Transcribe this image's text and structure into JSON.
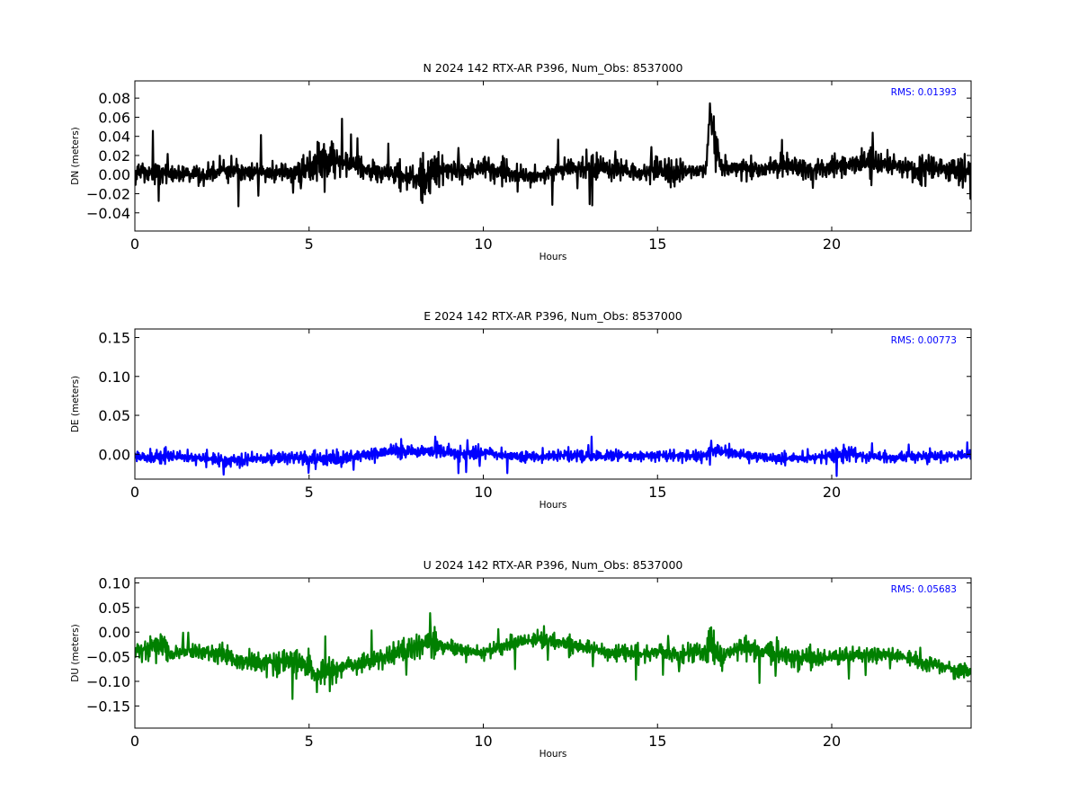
{
  "chart_data": [
    {
      "type": "line",
      "title": "N 2024 142 RTX-AR  P396, Num_Obs: 8537000",
      "xlabel": "Hours",
      "ylabel": "DN (meters)",
      "xlim": [
        0,
        24
      ],
      "ylim": [
        -0.059,
        0.098
      ],
      "xticks": [
        0,
        5,
        10,
        15,
        20
      ],
      "yticks": [
        -0.04,
        -0.02,
        0.0,
        0.02,
        0.04,
        0.06,
        0.08
      ],
      "ytick_labels": [
        "−0.04",
        "−0.02",
        "0.00",
        "0.02",
        "0.04",
        "0.06",
        "0.08"
      ],
      "grid": false,
      "annotation": "RMS:  0.01393",
      "annotation_color": "#0000ff",
      "series": [
        {
          "color": "#000000",
          "x": [
            0,
            0.5,
            1,
            1.5,
            2,
            2.5,
            3,
            3.5,
            4,
            4.5,
            5,
            5.25,
            5.5,
            6,
            6.5,
            7,
            7.5,
            8,
            8.4,
            8.7,
            9,
            9.5,
            10,
            10.5,
            11,
            11.5,
            12,
            12.5,
            13,
            13.5,
            14,
            14.5,
            15,
            15.3,
            15.6,
            16,
            16.4,
            16.5,
            16.8,
            17,
            17.5,
            18,
            18.5,
            19,
            19.5,
            20,
            20.5,
            21,
            21.5,
            22,
            22.5,
            23,
            23.5,
            24
          ],
          "center": [
            0.002,
            0.003,
            0.002,
            0.0,
            -0.001,
            0.005,
            0.004,
            0.003,
            0.001,
            0.003,
            0.006,
            0.013,
            0.014,
            0.012,
            0.007,
            0.003,
            0.0,
            -0.002,
            -0.004,
            0.006,
            0.004,
            0.003,
            0.006,
            0.003,
            -0.001,
            -0.002,
            0.003,
            0.006,
            0.008,
            0.005,
            0.004,
            0.001,
            0.005,
            0.001,
            0.003,
            0.004,
            0.005,
            0.068,
            0.012,
            0.007,
            0.006,
            0.006,
            0.009,
            0.007,
            0.006,
            0.008,
            0.01,
            0.012,
            0.011,
            0.009,
            0.005,
            0.007,
            0.005,
            0.004
          ],
          "amplitude": [
            0.018,
            0.018,
            0.017,
            0.013,
            0.014,
            0.02,
            0.018,
            0.017,
            0.015,
            0.018,
            0.026,
            0.038,
            0.035,
            0.02,
            0.018,
            0.018,
            0.017,
            0.02,
            0.04,
            0.03,
            0.022,
            0.016,
            0.018,
            0.017,
            0.017,
            0.015,
            0.015,
            0.018,
            0.02,
            0.018,
            0.016,
            0.014,
            0.018,
            0.026,
            0.016,
            0.013,
            0.014,
            0.022,
            0.018,
            0.016,
            0.015,
            0.016,
            0.017,
            0.016,
            0.016,
            0.016,
            0.017,
            0.022,
            0.018,
            0.02,
            0.018,
            0.022,
            0.02,
            0.016
          ]
        }
      ]
    },
    {
      "type": "line",
      "title": "E 2024 142 RTX-AR  P396, Num_Obs: 8537000",
      "xlabel": "Hours",
      "ylabel": "DE (meters)",
      "xlim": [
        0,
        24
      ],
      "ylim": [
        -0.032,
        0.161
      ],
      "xticks": [
        0,
        5,
        10,
        15,
        20
      ],
      "yticks": [
        0.0,
        0.05,
        0.1,
        0.15
      ],
      "ytick_labels": [
        "0.00",
        "0.05",
        "0.10",
        "0.15"
      ],
      "grid": false,
      "annotation": "RMS:  0.00773",
      "annotation_color": "#0000ff",
      "series": [
        {
          "color": "#0000ff",
          "x": [
            0,
            0.5,
            1,
            1.5,
            2,
            2.5,
            3,
            3.5,
            4,
            4.5,
            5,
            5.5,
            6,
            6.5,
            7,
            7.5,
            8,
            8.5,
            9,
            9.5,
            10,
            10.5,
            11,
            11.5,
            12,
            12.5,
            13,
            13.5,
            14,
            14.5,
            15,
            15.5,
            16,
            16.4,
            16.5,
            16.6,
            17,
            17.5,
            18,
            18.5,
            19,
            19.5,
            20,
            20.5,
            21,
            21.5,
            22,
            22.5,
            23,
            23.5,
            24
          ],
          "center": [
            -0.004,
            -0.003,
            -0.002,
            -0.004,
            -0.006,
            -0.007,
            -0.008,
            -0.005,
            -0.004,
            -0.004,
            -0.006,
            -0.007,
            -0.005,
            -0.002,
            0.002,
            0.003,
            0.004,
            0.004,
            0.002,
            0.0,
            0.002,
            -0.001,
            -0.004,
            -0.003,
            -0.002,
            -0.001,
            -0.003,
            -0.003,
            -0.001,
            -0.003,
            -0.001,
            -0.002,
            -0.003,
            -0.001,
            0.01,
            0.005,
            0.003,
            -0.002,
            -0.004,
            -0.006,
            -0.005,
            -0.004,
            -0.002,
            0.002,
            -0.003,
            -0.004,
            -0.003,
            -0.003,
            -0.002,
            -0.002,
            -0.001
          ],
          "amplitude": [
            0.011,
            0.012,
            0.014,
            0.012,
            0.012,
            0.013,
            0.014,
            0.013,
            0.014,
            0.013,
            0.015,
            0.016,
            0.013,
            0.013,
            0.014,
            0.014,
            0.014,
            0.014,
            0.013,
            0.012,
            0.012,
            0.011,
            0.011,
            0.011,
            0.011,
            0.012,
            0.013,
            0.012,
            0.011,
            0.01,
            0.011,
            0.011,
            0.011,
            0.012,
            0.018,
            0.015,
            0.013,
            0.011,
            0.011,
            0.011,
            0.011,
            0.011,
            0.013,
            0.017,
            0.011,
            0.01,
            0.01,
            0.01,
            0.01,
            0.01,
            0.01
          ]
        }
      ]
    },
    {
      "type": "line",
      "title": "U 2024 142 RTX-AR  P396, Num_Obs: 8537000",
      "xlabel": "Hours",
      "ylabel": "DU (meters)",
      "xlim": [
        0,
        24
      ],
      "ylim": [
        -0.195,
        0.11
      ],
      "xticks": [
        0,
        5,
        10,
        15,
        20
      ],
      "yticks": [
        -0.15,
        -0.1,
        -0.05,
        0.0,
        0.05,
        0.1
      ],
      "ytick_labels": [
        "−0.15",
        "−0.10",
        "−0.05",
        "0.00",
        "0.05",
        "0.10"
      ],
      "grid": false,
      "annotation": "RMS:  0.05683",
      "annotation_color": "#0000ff",
      "series": [
        {
          "color": "#008000",
          "x": [
            0,
            0.5,
            0.8,
            1,
            1.5,
            2,
            2.5,
            3,
            3.5,
            4,
            4.5,
            5,
            5.25,
            5.5,
            6,
            6.5,
            7,
            7.5,
            8,
            8.5,
            9,
            9.5,
            10,
            10.5,
            11,
            11.5,
            12,
            12.5,
            13,
            13.5,
            14,
            14.5,
            15,
            15.5,
            16,
            16.4,
            16.5,
            16.8,
            17,
            17.5,
            18,
            18.5,
            19,
            19.5,
            20,
            20.5,
            21,
            21.5,
            22,
            22.5,
            23,
            23.5,
            24
          ],
          "center": [
            -0.04,
            -0.03,
            -0.02,
            -0.045,
            -0.04,
            -0.04,
            -0.045,
            -0.06,
            -0.06,
            -0.06,
            -0.06,
            -0.07,
            -0.09,
            -0.08,
            -0.07,
            -0.065,
            -0.055,
            -0.04,
            -0.03,
            -0.02,
            -0.03,
            -0.04,
            -0.04,
            -0.03,
            -0.02,
            -0.015,
            -0.015,
            -0.025,
            -0.03,
            -0.04,
            -0.04,
            -0.045,
            -0.04,
            -0.045,
            -0.04,
            -0.04,
            -0.03,
            -0.06,
            -0.04,
            -0.03,
            -0.04,
            -0.045,
            -0.05,
            -0.055,
            -0.05,
            -0.05,
            -0.045,
            -0.045,
            -0.05,
            -0.06,
            -0.065,
            -0.075,
            -0.08
          ],
          "amplitude": [
            0.025,
            0.03,
            0.05,
            0.025,
            0.025,
            0.025,
            0.025,
            0.035,
            0.04,
            0.045,
            0.04,
            0.045,
            0.055,
            0.04,
            0.03,
            0.03,
            0.03,
            0.03,
            0.035,
            0.04,
            0.03,
            0.025,
            0.025,
            0.025,
            0.025,
            0.025,
            0.03,
            0.025,
            0.025,
            0.025,
            0.025,
            0.025,
            0.025,
            0.025,
            0.03,
            0.035,
            0.07,
            0.06,
            0.03,
            0.03,
            0.03,
            0.035,
            0.035,
            0.03,
            0.03,
            0.03,
            0.03,
            0.025,
            0.025,
            0.025,
            0.025,
            0.03,
            0.03
          ]
        }
      ]
    }
  ]
}
